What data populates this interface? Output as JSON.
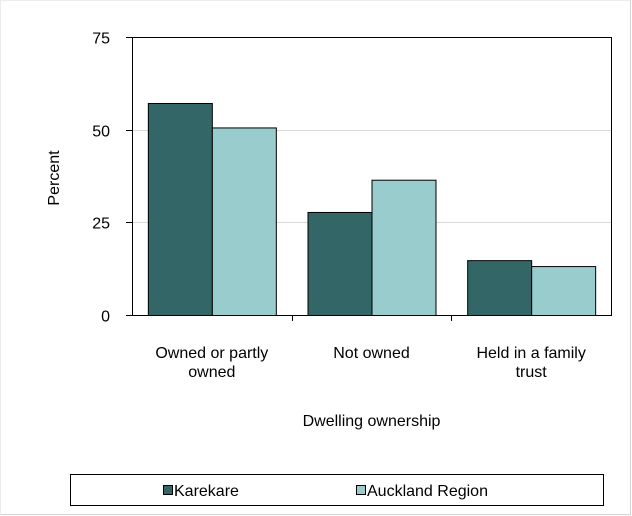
{
  "chart_data": {
    "type": "bar",
    "title": "",
    "xlabel": "Dwelling ownership",
    "ylabel": "Percent",
    "ylim": [
      0,
      75
    ],
    "yticks": [
      0,
      25,
      50,
      75
    ],
    "categories": [
      [
        "Owned or partly",
        "owned"
      ],
      [
        "Not owned"
      ],
      [
        "Held in a family",
        "trust"
      ]
    ],
    "series": [
      {
        "name": "Karekare",
        "color": "#336666",
        "values": [
          57.2,
          27.8,
          14.8
        ]
      },
      {
        "name": "Auckland Region",
        "color": "#99cccc",
        "values": [
          50.6,
          36.5,
          13.2
        ]
      }
    ],
    "grid": true,
    "legend_position": "bottom"
  }
}
